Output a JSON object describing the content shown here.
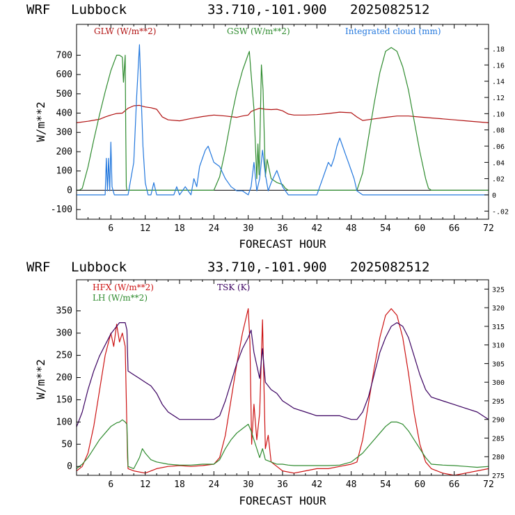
{
  "chart_data": [
    {
      "type": "line",
      "header": {
        "model": "WRF",
        "site": "Lubbock",
        "coords": "33.710,-101.900",
        "run": "2025082512"
      },
      "xlabel": "FORECAST HOUR",
      "ylabel": "W/m**2",
      "xlim": [
        0,
        72
      ],
      "ylim": [
        -150,
        860
      ],
      "x_ticks": [
        6,
        12,
        18,
        24,
        30,
        36,
        42,
        48,
        54,
        60,
        66,
        72
      ],
      "y_ticks": [
        -100,
        0,
        100,
        200,
        300,
        400,
        500,
        600,
        700
      ],
      "y2lim": [
        -0.03,
        0.21
      ],
      "y2_ticks": [
        -0.02,
        0,
        0.02,
        0.04,
        0.06,
        0.08,
        0.1,
        0.12,
        0.14,
        0.16,
        0.18
      ],
      "y2_tick_labels": [
        "-.02",
        "0",
        ".02",
        ".04",
        ".06",
        ".08",
        ".10",
        ".12",
        ".14",
        ".16",
        ".18"
      ],
      "series": [
        {
          "name": "GLW (W/m**2)",
          "color": "#b01010",
          "axis": "left",
          "x": [
            0,
            2,
            4,
            5,
            6,
            7,
            8,
            9,
            10,
            11,
            12,
            13,
            14,
            14.5,
            15,
            16,
            18,
            20,
            22,
            24,
            26,
            28,
            29,
            30,
            30.5,
            31,
            32,
            33,
            34,
            35,
            36,
            37,
            38,
            40,
            42,
            44,
            46,
            48,
            49,
            50,
            52,
            54,
            56,
            58,
            60,
            62,
            64,
            66,
            68,
            70,
            72
          ],
          "values": [
            350,
            358,
            368,
            380,
            390,
            398,
            400,
            425,
            438,
            440,
            432,
            428,
            420,
            400,
            380,
            365,
            360,
            372,
            382,
            390,
            385,
            378,
            385,
            390,
            408,
            415,
            425,
            420,
            418,
            420,
            412,
            395,
            390,
            390,
            392,
            398,
            405,
            402,
            380,
            362,
            370,
            378,
            385,
            385,
            380,
            375,
            370,
            365,
            360,
            355,
            350
          ]
        },
        {
          "name": "GSW (W/m**2)",
          "color": "#2e8b2e",
          "axis": "left",
          "x": [
            0,
            0.5,
            1,
            2,
            3,
            4,
            5,
            6,
            6.5,
            7,
            7.5,
            8,
            8.2,
            8.5,
            8.6,
            8.7,
            8.8,
            9,
            10,
            24,
            25,
            26,
            27,
            28,
            29,
            30,
            30.2,
            30.4,
            31,
            31.5,
            31.7,
            31.9,
            32,
            32.3,
            32.6,
            33,
            33.3,
            34,
            35,
            36,
            36.5,
            37,
            49,
            50,
            51,
            52,
            53,
            54,
            55,
            56,
            57,
            58,
            59,
            60,
            61,
            61.5,
            62,
            72
          ],
          "values": [
            0,
            0,
            10,
            120,
            260,
            390,
            510,
            620,
            660,
            700,
            700,
            690,
            560,
            700,
            300,
            20,
            0,
            0,
            0,
            0,
            70,
            210,
            370,
            510,
            620,
            705,
            720,
            640,
            420,
            60,
            240,
            80,
            190,
            650,
            520,
            70,
            160,
            60,
            40,
            30,
            10,
            0,
            0,
            90,
            270,
            450,
            610,
            720,
            740,
            720,
            640,
            520,
            360,
            200,
            60,
            10,
            0,
            0
          ]
        },
        {
          "name": "Integrated cloud (mm)",
          "color": "#2277dd",
          "axis": "right",
          "x": [
            0,
            5,
            5.2,
            5.4,
            5.6,
            5.8,
            6.0,
            6.2,
            6.4,
            6.6,
            6.8,
            7.0,
            8,
            9,
            10,
            10.5,
            11,
            11.3,
            11.6,
            12,
            12.5,
            13,
            13.5,
            14,
            17,
            17.5,
            18,
            19,
            20,
            20.5,
            21,
            21.5,
            22,
            22.5,
            23,
            23.5,
            24,
            25,
            26,
            27,
            28,
            29,
            30,
            30.5,
            31,
            31.5,
            32,
            32.5,
            33,
            33.5,
            34,
            35,
            36,
            37,
            38,
            40,
            42,
            43,
            43.5,
            44,
            44.5,
            45,
            45.5,
            46,
            46.5,
            47,
            47.5,
            48,
            48.5,
            49,
            50,
            72
          ],
          "values": [
            0,
            0,
            0.045,
            0.005,
            0.045,
            0.005,
            0.065,
            0.01,
            0.005,
            0,
            0,
            0,
            0,
            0,
            0.04,
            0.12,
            0.185,
            0.12,
            0.06,
            0.015,
            0,
            0,
            0.015,
            0,
            0,
            0.01,
            0,
            0.01,
            0,
            0.02,
            0.01,
            0.035,
            0.045,
            0.055,
            0.06,
            0.05,
            0.04,
            0.035,
            0.02,
            0.01,
            0.005,
            0.005,
            0,
            0.01,
            0.04,
            0.005,
            0.02,
            0.055,
            0.025,
            0.005,
            0.015,
            0.03,
            0.01,
            0,
            0,
            0,
            0,
            0.02,
            0.03,
            0.04,
            0.035,
            0.045,
            0.06,
            0.07,
            0.06,
            0.05,
            0.04,
            0.03,
            0.02,
            0.005,
            0,
            0
          ]
        }
      ]
    },
    {
      "type": "line",
      "header": {
        "model": "WRF",
        "site": "Lubbock",
        "coords": "33.710,-101.900",
        "run": "2025082512"
      },
      "xlabel": "FORECAST HOUR",
      "ylabel": "W/m**2",
      "xlim": [
        0,
        72
      ],
      "ylim": [
        -20,
        420
      ],
      "x_ticks": [
        6,
        12,
        18,
        24,
        30,
        36,
        42,
        48,
        54,
        60,
        66,
        72
      ],
      "y_ticks": [
        0,
        50,
        100,
        150,
        200,
        250,
        300,
        350
      ],
      "y2lim": [
        275,
        327.5
      ],
      "y2_ticks": [
        275,
        280,
        285,
        290,
        295,
        300,
        305,
        310,
        315,
        320,
        325
      ],
      "y2_tick_labels": [
        "275",
        "280",
        "285",
        "290",
        "295",
        "300",
        "305",
        "310",
        "315",
        "320",
        "325"
      ],
      "series": [
        {
          "name": "HFX (W/m**2)",
          "color": "#cc1111",
          "axis": "left",
          "x": [
            0,
            1,
            2,
            3,
            4,
            5,
            6,
            6.5,
            7,
            7.5,
            8,
            8.5,
            8.7,
            8.9,
            9,
            10,
            12,
            14,
            16,
            18,
            20,
            22,
            24,
            25,
            26,
            27,
            28,
            29,
            30,
            30.3,
            30.6,
            31,
            31.5,
            32,
            32.5,
            33,
            33.5,
            34,
            35,
            36,
            38,
            40,
            42,
            44,
            46,
            48,
            49,
            50,
            51,
            52,
            53,
            54,
            55,
            56,
            57,
            58,
            59,
            60,
            61,
            62,
            64,
            66,
            68,
            70,
            72
          ],
          "values": [
            -10,
            0,
            30,
            90,
            170,
            250,
            300,
            270,
            320,
            280,
            300,
            270,
            150,
            20,
            -5,
            -10,
            -15,
            -5,
            0,
            2,
            0,
            2,
            5,
            20,
            70,
            150,
            230,
            300,
            355,
            280,
            50,
            140,
            60,
            120,
            330,
            40,
            70,
            10,
            0,
            -10,
            -15,
            -10,
            -5,
            -5,
            0,
            5,
            10,
            60,
            140,
            220,
            290,
            340,
            355,
            340,
            290,
            210,
            120,
            50,
            10,
            -5,
            -15,
            -20,
            -15,
            -10,
            -5
          ]
        },
        {
          "name": "LH  (W/m**2)",
          "color": "#2e8b2e",
          "axis": "left",
          "x": [
            0,
            1,
            2,
            3,
            4,
            5,
            6,
            7,
            7.5,
            8,
            8.5,
            8.8,
            9,
            10,
            11,
            11.5,
            12,
            13,
            14,
            16,
            18,
            20,
            22,
            24,
            25,
            26,
            27,
            28,
            29,
            30,
            30.5,
            31,
            32,
            32.5,
            33,
            34,
            35,
            36,
            37,
            38,
            40,
            42,
            44,
            46,
            48,
            49,
            50,
            51,
            52,
            53,
            54,
            55,
            56,
            57,
            58,
            59,
            60,
            61,
            62,
            64,
            66,
            68,
            70,
            72
          ],
          "values": [
            -5,
            5,
            20,
            40,
            60,
            75,
            90,
            98,
            100,
            105,
            100,
            95,
            0,
            -5,
            20,
            40,
            30,
            15,
            10,
            5,
            3,
            3,
            5,
            5,
            15,
            40,
            60,
            75,
            85,
            95,
            80,
            60,
            20,
            40,
            15,
            10,
            5,
            5,
            3,
            2,
            2,
            2,
            2,
            3,
            10,
            20,
            30,
            45,
            60,
            75,
            90,
            100,
            100,
            95,
            80,
            60,
            40,
            20,
            5,
            3,
            2,
            0,
            -2,
            0
          ]
        },
        {
          "name": "TSK (K)",
          "color": "#3a0060",
          "axis": "right",
          "x": [
            0,
            1,
            2,
            3,
            4,
            5,
            6,
            7,
            7.5,
            8,
            8.5,
            8.8,
            9,
            10,
            11,
            12,
            13,
            14,
            15,
            16,
            18,
            20,
            22,
            24,
            25,
            26,
            27,
            28,
            29,
            30,
            30.5,
            31,
            32,
            32.5,
            33,
            34,
            35,
            36,
            37,
            38,
            40,
            42,
            44,
            46,
            48,
            49,
            50,
            51,
            52,
            53,
            54,
            55,
            56,
            57,
            58,
            59,
            60,
            61,
            62,
            64,
            66,
            68,
            70,
            72
          ],
          "values": [
            288,
            292,
            298,
            303,
            307,
            310,
            313,
            315,
            316,
            316,
            316,
            314,
            303,
            302,
            301,
            300,
            299,
            297,
            294,
            292,
            290,
            290,
            290,
            290,
            291,
            295,
            300,
            305,
            309,
            312,
            314,
            308,
            301,
            309,
            300,
            298,
            297,
            295,
            294,
            293,
            292,
            291,
            291,
            291,
            290,
            290,
            292,
            296,
            302,
            308,
            312,
            315,
            316,
            315,
            312,
            307,
            302,
            298,
            296,
            295,
            294,
            293,
            292,
            290
          ]
        }
      ]
    }
  ]
}
